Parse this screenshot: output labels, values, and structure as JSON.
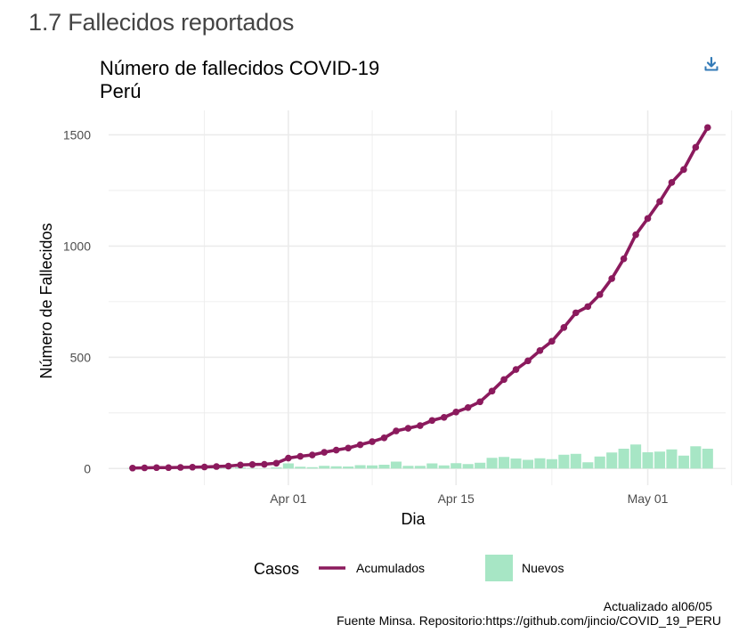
{
  "page": {
    "section_heading": "1.7 Fallecidos reportados"
  },
  "download_icon": "download-icon",
  "chart_data": {
    "type": "line",
    "title": "Número de fallecidos COVID-19",
    "subtitle": "Perú",
    "xlabel": "Dia",
    "ylabel": "Número de Fallecidos",
    "x_start": "2020-03-19",
    "x_ticks": [
      {
        "day": 13,
        "label": "Apr 01"
      },
      {
        "day": 27,
        "label": "Apr 15"
      },
      {
        "day": 43,
        "label": "May 01"
      }
    ],
    "y_ticks": [
      0,
      500,
      1000,
      1500
    ],
    "xlim": [
      -2,
      49.5
    ],
    "ylim": [
      -75,
      1610
    ],
    "grid": true,
    "legend": {
      "title": "Casos",
      "position": "bottom",
      "items": [
        {
          "label": "Acumulados",
          "kind": "line"
        },
        {
          "label": "Nuevos",
          "kind": "bar"
        }
      ]
    },
    "colors": {
      "acumulados": "#8b1a5d",
      "nuevos": "#a7e6c5",
      "grid": "#ebebeb"
    },
    "series": [
      {
        "name": "Acumulados",
        "type": "line",
        "values": [
          2,
          3,
          4,
          4,
          5,
          6,
          7,
          9,
          11,
          16,
          18,
          19,
          24,
          47,
          55,
          61,
          73,
          83,
          92,
          107,
          121,
          138,
          169,
          181,
          193,
          216,
          230,
          254,
          274,
          300,
          348,
          400,
          445,
          484,
          530,
          572,
          634,
          700,
          728,
          782,
          854,
          943,
          1051,
          1124,
          1200,
          1286,
          1344,
          1444,
          1533
        ]
      },
      {
        "name": "Nuevos",
        "type": "bar",
        "values": [
          2,
          1,
          1,
          0,
          1,
          1,
          1,
          2,
          2,
          5,
          2,
          1,
          5,
          23,
          8,
          6,
          12,
          10,
          9,
          15,
          14,
          17,
          31,
          12,
          12,
          23,
          14,
          24,
          20,
          26,
          48,
          52,
          45,
          39,
          46,
          42,
          62,
          66,
          28,
          54,
          72,
          89,
          108,
          73,
          76,
          86,
          58,
          100,
          89
        ]
      }
    ],
    "caption": [
      "Actualizado al06/05",
      "Fuente Minsa. Repositorio:https://github.com/jincio/COVID_19_PERU"
    ]
  }
}
